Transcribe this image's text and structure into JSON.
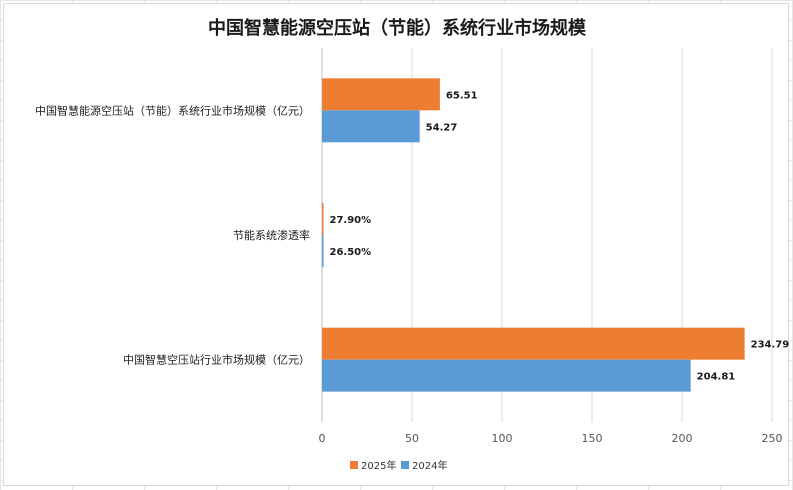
{
  "chart_data": {
    "type": "bar",
    "orientation": "horizontal",
    "title": "中国智慧能源空压站（节能）系统行业市场规模",
    "categories": [
      "中国智慧能源空压站（节能）系统行业市场规模（亿元）",
      "节能系统渗透率",
      "中国智慧空压站行业市场规模（亿元）"
    ],
    "series": [
      {
        "name": "2025年",
        "color": "#ED7D31",
        "values": [
          65.51,
          0.279,
          234.79
        ],
        "labels": [
          "65.51",
          "27.90%",
          "234.79"
        ]
      },
      {
        "name": "2024年",
        "color": "#5B9BD5",
        "values": [
          54.27,
          0.265,
          204.81
        ],
        "labels": [
          "54.27",
          "26.50%",
          "204.81"
        ]
      }
    ],
    "xlim": [
      0,
      250
    ],
    "xticks": [
      "0",
      "50",
      "100",
      "150",
      "200",
      "250"
    ],
    "grid": true,
    "legend_position": "bottom"
  }
}
